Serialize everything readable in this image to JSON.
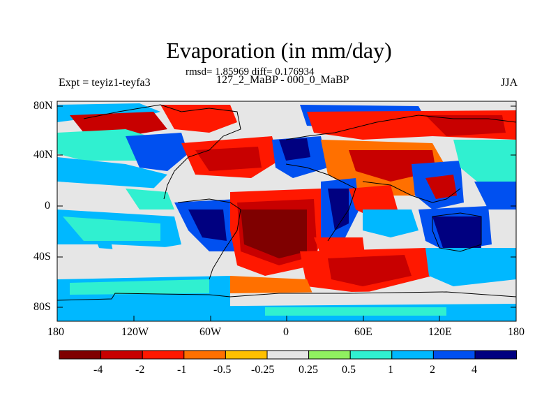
{
  "title": "Evaporation (in mm/day)",
  "stats": "rmsd= 1.85969 diff= 0.176934",
  "left_label": "Expt = teyiz1-teyfa3",
  "center_label": "127_2_MaBP - 000_0_MaBP",
  "right_label": "JJA",
  "map": {
    "projection": "cylindrical-equidistant",
    "lat_ticks": [
      "80N",
      "40N",
      "0",
      "40S",
      "80S"
    ],
    "lon_ticks": [
      "180",
      "120W",
      "60W",
      "0",
      "60E",
      "120E",
      "180"
    ],
    "land_outline": "black"
  },
  "colorbar": {
    "labels": [
      "-4",
      "-2",
      "-1",
      "-0.5",
      "-0.25",
      "0.25",
      "0.5",
      "1",
      "2",
      "4"
    ],
    "colors": [
      "#7f0000",
      "#c80000",
      "#ff1800",
      "#ff7000",
      "#ffc000",
      "#e6e6e6",
      "#90f060",
      "#30f0d0",
      "#00b8ff",
      "#0050f0",
      "#000080"
    ]
  }
}
